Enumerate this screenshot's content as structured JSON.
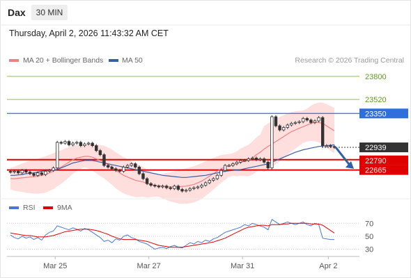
{
  "header": {
    "symbol": "Dax",
    "interval": "30 MIN",
    "datetime": "Thursday, April 2, 2026 11:43:32 AM CET"
  },
  "credit": "Research © 2026 Trading Central",
  "colors": {
    "resistance": "#8cc43c",
    "pivot": "#2f6fdc",
    "support": "#e00000",
    "last": "#333333",
    "bands": "#ffd3d3",
    "ma20": "#f08080",
    "ma50": "#3a5f9f",
    "rsi": "#4a78d0",
    "rsi_ma": "#e00000"
  },
  "chart_data": [
    {
      "type": "candlestick",
      "legend": [
        {
          "label": "MA 20 + Bollinger Bands",
          "color": "#f08080"
        },
        {
          "label": "MA 50",
          "color": "#3a5f9f"
        }
      ],
      "ylim": [
        22350,
        23950
      ],
      "x_ticks": [
        "Mar 25",
        "Mar 27",
        "Mar 31",
        "Apr 2"
      ],
      "levels": [
        {
          "label": "23800",
          "value": 23800,
          "role": "resistance"
        },
        {
          "label": "23520",
          "value": 23520,
          "role": "resistance"
        },
        {
          "label": "23350",
          "value": 23350,
          "role": "pivot"
        },
        {
          "label": "22939",
          "value": 22939,
          "role": "last"
        },
        {
          "label": "22790",
          "value": 22790,
          "role": "support"
        },
        {
          "label": "22665",
          "value": 22665,
          "role": "support"
        }
      ],
      "forecast_arrow": {
        "from": 22939,
        "to": 22680
      },
      "close": [
        22640,
        22650,
        22630,
        22660,
        22640,
        22620,
        22600,
        22630,
        22610,
        22650,
        22660,
        22690,
        23000,
        22990,
        23010,
        22970,
        22990,
        23000,
        22960,
        22980,
        22990,
        22960,
        22900,
        22850,
        22720,
        22700,
        22680,
        22660,
        22650,
        22700,
        22720,
        22740,
        22700,
        22620,
        22560,
        22500,
        22480,
        22470,
        22460,
        22470,
        22450,
        22440,
        22470,
        22430,
        22410,
        22420,
        22440,
        22450,
        22460,
        22480,
        22510,
        22540,
        22560,
        22600,
        22660,
        22720,
        22720,
        22740,
        22760,
        22780,
        22780,
        22800,
        22810,
        22790,
        22800,
        22760,
        22690,
        23310,
        23200,
        23150,
        23180,
        23210,
        23230,
        23240,
        23250,
        23290,
        23270,
        23240,
        23260,
        23300,
        22960,
        22960,
        22950,
        22939
      ],
      "ma20": [
        22560,
        22560,
        22565,
        22570,
        22575,
        22580,
        22585,
        22590,
        22600,
        22610,
        22630,
        22650,
        22680,
        22700,
        22730,
        22760,
        22790,
        22810,
        22820,
        22830,
        22830,
        22820,
        22800,
        22780,
        22760,
        22730,
        22700,
        22660,
        22630,
        22600,
        22580,
        22560,
        22540,
        22530,
        22520,
        22500,
        22490,
        22480,
        22475,
        22470,
        22465,
        22460,
        22460,
        22460,
        22465,
        22470,
        22480,
        22490,
        22510,
        22530,
        22560,
        22590,
        22620,
        22650,
        22680,
        22700,
        22720,
        22730,
        22740,
        22760,
        22770,
        22780,
        22810,
        22850,
        22880,
        22920,
        22950,
        22980,
        23010,
        23040,
        23070,
        23100,
        23130,
        23150,
        23170,
        23190,
        23210,
        23230,
        23240,
        23240,
        23230,
        23200,
        23170,
        23140
      ],
      "ma50": [
        22600,
        22600,
        22605,
        22610,
        22620,
        22625,
        22630,
        22640,
        22650,
        22655,
        22660,
        22665,
        22670,
        22690,
        22710,
        22730,
        22750,
        22760,
        22770,
        22780,
        22780,
        22780,
        22770,
        22760,
        22750,
        22740,
        22730,
        22720,
        22710,
        22700,
        22690,
        22680,
        22670,
        22660,
        22650,
        22640,
        22630,
        22620,
        22610,
        22600,
        22595,
        22590,
        22585,
        22580,
        22575,
        22575,
        22580,
        22585,
        22590,
        22595,
        22600,
        22610,
        22620,
        22630,
        22640,
        22650,
        22655,
        22660,
        22665,
        22670,
        22680,
        22690,
        22700,
        22710,
        22720,
        22730,
        22740,
        22760,
        22780,
        22800,
        22820,
        22840,
        22860,
        22880,
        22895,
        22910,
        22920,
        22930,
        22940,
        22950,
        22955,
        22960,
        22965,
        22970
      ]
    },
    {
      "type": "line",
      "legend": [
        {
          "label": "RSI",
          "color": "#4a78d0"
        },
        {
          "label": "9MA",
          "color": "#e00000"
        }
      ],
      "ylim": [
        22,
        80
      ],
      "y_ticks": [
        70,
        50,
        30
      ],
      "rsi": [
        52,
        48,
        46,
        50,
        47,
        49,
        45,
        48,
        44,
        52,
        56,
        58,
        66,
        64,
        62,
        60,
        63,
        61,
        58,
        62,
        60,
        56,
        52,
        48,
        42,
        44,
        40,
        46,
        44,
        50,
        52,
        48,
        46,
        42,
        40,
        38,
        34,
        30,
        32,
        33,
        31,
        34,
        36,
        33,
        32,
        36,
        40,
        38,
        42,
        40,
        44,
        42,
        46,
        48,
        52,
        56,
        58,
        60,
        62,
        64,
        68,
        66,
        70,
        68,
        66,
        64,
        60,
        76,
        72,
        68,
        70,
        72,
        70,
        68,
        70,
        72,
        68,
        66,
        70,
        68,
        47,
        46,
        45,
        45
      ],
      "rsi_ma": [
        55,
        54,
        53,
        52,
        51,
        51,
        50,
        49,
        49,
        49,
        50,
        51,
        53,
        55,
        57,
        58,
        59,
        60,
        61,
        61,
        61,
        60,
        59,
        57,
        55,
        53,
        50,
        48,
        46,
        45,
        45,
        45,
        45,
        44,
        43,
        42,
        40,
        38,
        36,
        35,
        34,
        33,
        33,
        33,
        33,
        34,
        35,
        36,
        37,
        38,
        39,
        40,
        41,
        43,
        45,
        47,
        50,
        53,
        56,
        59,
        62,
        64,
        65,
        66,
        67,
        67,
        66,
        68,
        68,
        68,
        69,
        69,
        70,
        70,
        70,
        70,
        70,
        69,
        69,
        69,
        67,
        63,
        59,
        55
      ]
    }
  ]
}
